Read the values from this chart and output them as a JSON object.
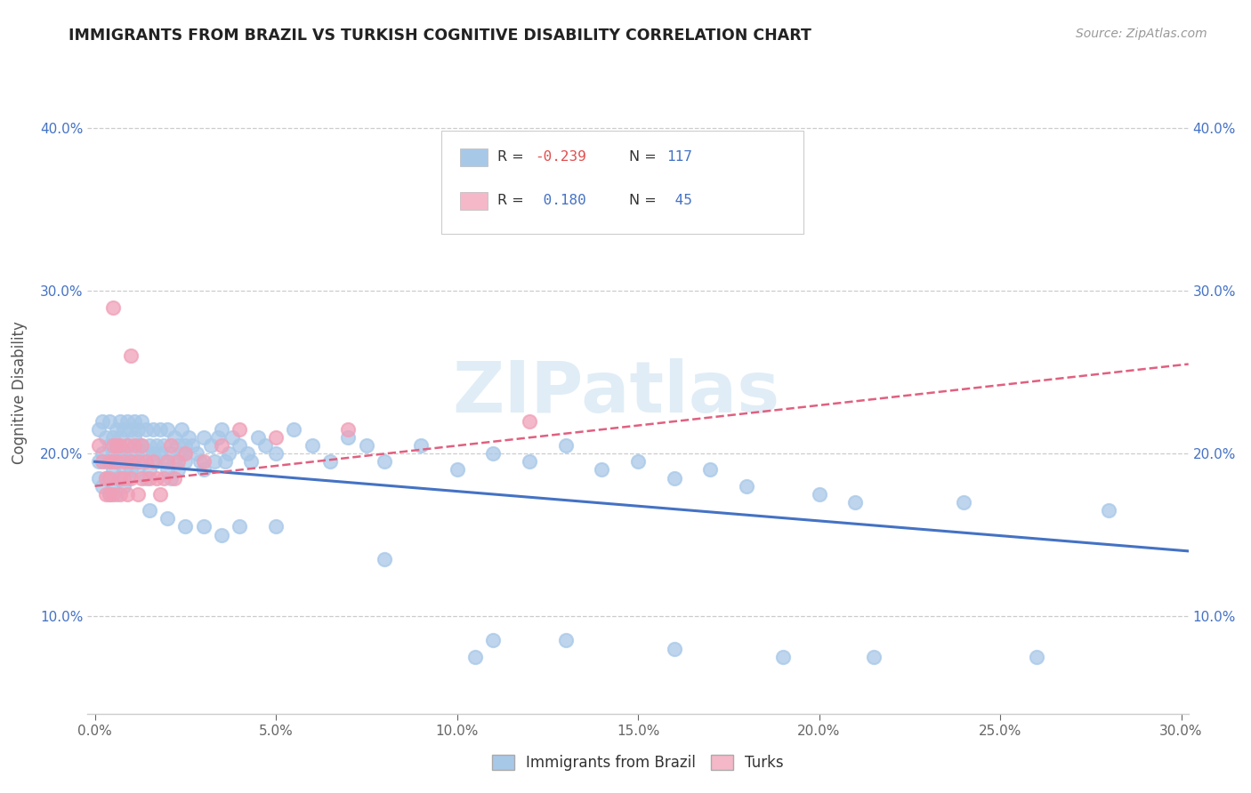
{
  "title": "IMMIGRANTS FROM BRAZIL VS TURKISH COGNITIVE DISABILITY CORRELATION CHART",
  "source_text": "Source: ZipAtlas.com",
  "ylabel": "Cognitive Disability",
  "xlim": [
    -0.002,
    0.302
  ],
  "ylim": [
    0.04,
    0.435
  ],
  "xtick_labels": [
    "0.0%",
    "5.0%",
    "10.0%",
    "15.0%",
    "20.0%",
    "25.0%",
    "30.0%"
  ],
  "xtick_vals": [
    0.0,
    0.05,
    0.1,
    0.15,
    0.2,
    0.25,
    0.3
  ],
  "ytick_labels": [
    "10.0%",
    "20.0%",
    "30.0%",
    "40.0%"
  ],
  "ytick_vals": [
    0.1,
    0.2,
    0.3,
    0.4
  ],
  "brazil_color": "#a8c8e8",
  "turks_color": "#f0a0b8",
  "brazil_line_color": "#4472c4",
  "turks_line_color": "#e06080",
  "brazil_legend_color": "#a8c8e8",
  "turks_legend_color": "#f4b8c8",
  "watermark": "ZIPatlas",
  "r_brazil": -0.239,
  "r_turks": 0.18,
  "brazil_scatter": [
    [
      0.001,
      0.215
    ],
    [
      0.001,
      0.195
    ],
    [
      0.001,
      0.185
    ],
    [
      0.002,
      0.22
    ],
    [
      0.002,
      0.2
    ],
    [
      0.002,
      0.18
    ],
    [
      0.003,
      0.21
    ],
    [
      0.003,
      0.195
    ],
    [
      0.003,
      0.185
    ],
    [
      0.004,
      0.22
    ],
    [
      0.004,
      0.205
    ],
    [
      0.004,
      0.195
    ],
    [
      0.004,
      0.185
    ],
    [
      0.004,
      0.175
    ],
    [
      0.005,
      0.21
    ],
    [
      0.005,
      0.2
    ],
    [
      0.005,
      0.19
    ],
    [
      0.005,
      0.18
    ],
    [
      0.006,
      0.215
    ],
    [
      0.006,
      0.205
    ],
    [
      0.006,
      0.195
    ],
    [
      0.006,
      0.185
    ],
    [
      0.006,
      0.175
    ],
    [
      0.007,
      0.22
    ],
    [
      0.007,
      0.21
    ],
    [
      0.007,
      0.2
    ],
    [
      0.007,
      0.185
    ],
    [
      0.008,
      0.215
    ],
    [
      0.008,
      0.2
    ],
    [
      0.008,
      0.19
    ],
    [
      0.008,
      0.18
    ],
    [
      0.009,
      0.22
    ],
    [
      0.009,
      0.205
    ],
    [
      0.009,
      0.195
    ],
    [
      0.009,
      0.185
    ],
    [
      0.01,
      0.215
    ],
    [
      0.01,
      0.2
    ],
    [
      0.01,
      0.19
    ],
    [
      0.011,
      0.22
    ],
    [
      0.011,
      0.21
    ],
    [
      0.011,
      0.195
    ],
    [
      0.012,
      0.215
    ],
    [
      0.012,
      0.205
    ],
    [
      0.012,
      0.19
    ],
    [
      0.013,
      0.22
    ],
    [
      0.013,
      0.205
    ],
    [
      0.013,
      0.195
    ],
    [
      0.014,
      0.215
    ],
    [
      0.014,
      0.2
    ],
    [
      0.014,
      0.185
    ],
    [
      0.015,
      0.205
    ],
    [
      0.015,
      0.19
    ],
    [
      0.016,
      0.215
    ],
    [
      0.016,
      0.2
    ],
    [
      0.017,
      0.205
    ],
    [
      0.017,
      0.195
    ],
    [
      0.018,
      0.215
    ],
    [
      0.018,
      0.2
    ],
    [
      0.019,
      0.205
    ],
    [
      0.019,
      0.195
    ],
    [
      0.02,
      0.215
    ],
    [
      0.02,
      0.19
    ],
    [
      0.021,
      0.2
    ],
    [
      0.021,
      0.185
    ],
    [
      0.022,
      0.21
    ],
    [
      0.022,
      0.195
    ],
    [
      0.023,
      0.205
    ],
    [
      0.023,
      0.19
    ],
    [
      0.024,
      0.215
    ],
    [
      0.024,
      0.2
    ],
    [
      0.025,
      0.205
    ],
    [
      0.025,
      0.195
    ],
    [
      0.026,
      0.21
    ],
    [
      0.027,
      0.205
    ],
    [
      0.028,
      0.2
    ],
    [
      0.029,
      0.195
    ],
    [
      0.03,
      0.21
    ],
    [
      0.03,
      0.19
    ],
    [
      0.032,
      0.205
    ],
    [
      0.033,
      0.195
    ],
    [
      0.034,
      0.21
    ],
    [
      0.035,
      0.215
    ],
    [
      0.036,
      0.195
    ],
    [
      0.037,
      0.2
    ],
    [
      0.038,
      0.21
    ],
    [
      0.04,
      0.205
    ],
    [
      0.042,
      0.2
    ],
    [
      0.043,
      0.195
    ],
    [
      0.045,
      0.21
    ],
    [
      0.047,
      0.205
    ],
    [
      0.05,
      0.2
    ],
    [
      0.055,
      0.215
    ],
    [
      0.06,
      0.205
    ],
    [
      0.065,
      0.195
    ],
    [
      0.07,
      0.21
    ],
    [
      0.075,
      0.205
    ],
    [
      0.08,
      0.195
    ],
    [
      0.09,
      0.205
    ],
    [
      0.1,
      0.19
    ],
    [
      0.11,
      0.2
    ],
    [
      0.12,
      0.195
    ],
    [
      0.13,
      0.205
    ],
    [
      0.14,
      0.19
    ],
    [
      0.15,
      0.195
    ],
    [
      0.16,
      0.185
    ],
    [
      0.17,
      0.19
    ],
    [
      0.18,
      0.18
    ],
    [
      0.2,
      0.175
    ],
    [
      0.21,
      0.17
    ],
    [
      0.24,
      0.17
    ],
    [
      0.28,
      0.165
    ],
    [
      0.015,
      0.165
    ],
    [
      0.02,
      0.16
    ],
    [
      0.025,
      0.155
    ],
    [
      0.03,
      0.155
    ],
    [
      0.035,
      0.15
    ],
    [
      0.04,
      0.155
    ],
    [
      0.05,
      0.155
    ],
    [
      0.08,
      0.135
    ],
    [
      0.11,
      0.085
    ],
    [
      0.13,
      0.085
    ],
    [
      0.16,
      0.08
    ],
    [
      0.19,
      0.075
    ],
    [
      0.105,
      0.075
    ],
    [
      0.215,
      0.075
    ],
    [
      0.26,
      0.075
    ]
  ],
  "turks_scatter": [
    [
      0.001,
      0.205
    ],
    [
      0.002,
      0.195
    ],
    [
      0.003,
      0.185
    ],
    [
      0.003,
      0.175
    ],
    [
      0.004,
      0.195
    ],
    [
      0.004,
      0.185
    ],
    [
      0.004,
      0.175
    ],
    [
      0.005,
      0.205
    ],
    [
      0.005,
      0.195
    ],
    [
      0.005,
      0.175
    ],
    [
      0.006,
      0.205
    ],
    [
      0.006,
      0.195
    ],
    [
      0.007,
      0.205
    ],
    [
      0.007,
      0.185
    ],
    [
      0.007,
      0.175
    ],
    [
      0.008,
      0.195
    ],
    [
      0.008,
      0.185
    ],
    [
      0.009,
      0.205
    ],
    [
      0.009,
      0.175
    ],
    [
      0.01,
      0.195
    ],
    [
      0.01,
      0.185
    ],
    [
      0.011,
      0.205
    ],
    [
      0.012,
      0.195
    ],
    [
      0.012,
      0.175
    ],
    [
      0.013,
      0.205
    ],
    [
      0.013,
      0.185
    ],
    [
      0.014,
      0.195
    ],
    [
      0.015,
      0.185
    ],
    [
      0.016,
      0.195
    ],
    [
      0.017,
      0.185
    ],
    [
      0.018,
      0.175
    ],
    [
      0.019,
      0.185
    ],
    [
      0.02,
      0.195
    ],
    [
      0.021,
      0.205
    ],
    [
      0.022,
      0.185
    ],
    [
      0.023,
      0.195
    ],
    [
      0.025,
      0.2
    ],
    [
      0.03,
      0.195
    ],
    [
      0.035,
      0.205
    ],
    [
      0.04,
      0.215
    ],
    [
      0.05,
      0.21
    ],
    [
      0.07,
      0.215
    ],
    [
      0.12,
      0.22
    ],
    [
      0.005,
      0.29
    ],
    [
      0.01,
      0.26
    ]
  ]
}
